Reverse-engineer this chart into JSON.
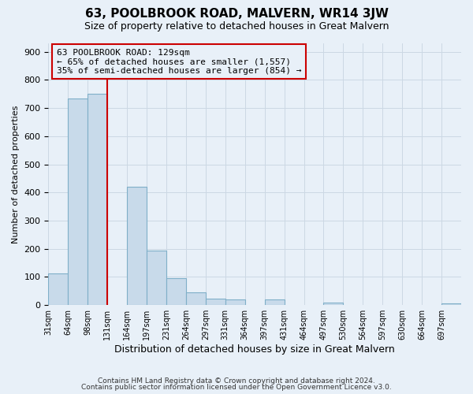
{
  "title": "63, POOLBROOK ROAD, MALVERN, WR14 3JW",
  "subtitle": "Size of property relative to detached houses in Great Malvern",
  "xlabel": "Distribution of detached houses by size in Great Malvern",
  "ylabel": "Number of detached properties",
  "footer_line1": "Contains HM Land Registry data © Crown copyright and database right 2024.",
  "footer_line2": "Contains public sector information licensed under the Open Government Licence v3.0.",
  "bin_labels": [
    "31sqm",
    "64sqm",
    "98sqm",
    "131sqm",
    "164sqm",
    "197sqm",
    "231sqm",
    "264sqm",
    "297sqm",
    "331sqm",
    "364sqm",
    "397sqm",
    "431sqm",
    "464sqm",
    "497sqm",
    "530sqm",
    "564sqm",
    "597sqm",
    "630sqm",
    "664sqm",
    "697sqm"
  ],
  "bin_values": [
    113,
    735,
    752,
    0,
    420,
    193,
    95,
    46,
    22,
    20,
    0,
    20,
    0,
    0,
    10,
    0,
    0,
    0,
    0,
    0,
    5
  ],
  "bar_color": "#c8daea",
  "bar_edge_color": "#7fafc8",
  "grid_color": "#ccd8e4",
  "background_color": "#e8f0f8",
  "vline_x_index": 3,
  "vline_color": "#cc0000",
  "annotation_title": "63 POOLBROOK ROAD: 129sqm",
  "annotation_line1": "← 65% of detached houses are smaller (1,557)",
  "annotation_line2": "35% of semi-detached houses are larger (854) →",
  "annotation_box_edge": "#cc0000",
  "ylim": [
    0,
    930
  ],
  "yticks": [
    0,
    100,
    200,
    300,
    400,
    500,
    600,
    700,
    800,
    900
  ]
}
